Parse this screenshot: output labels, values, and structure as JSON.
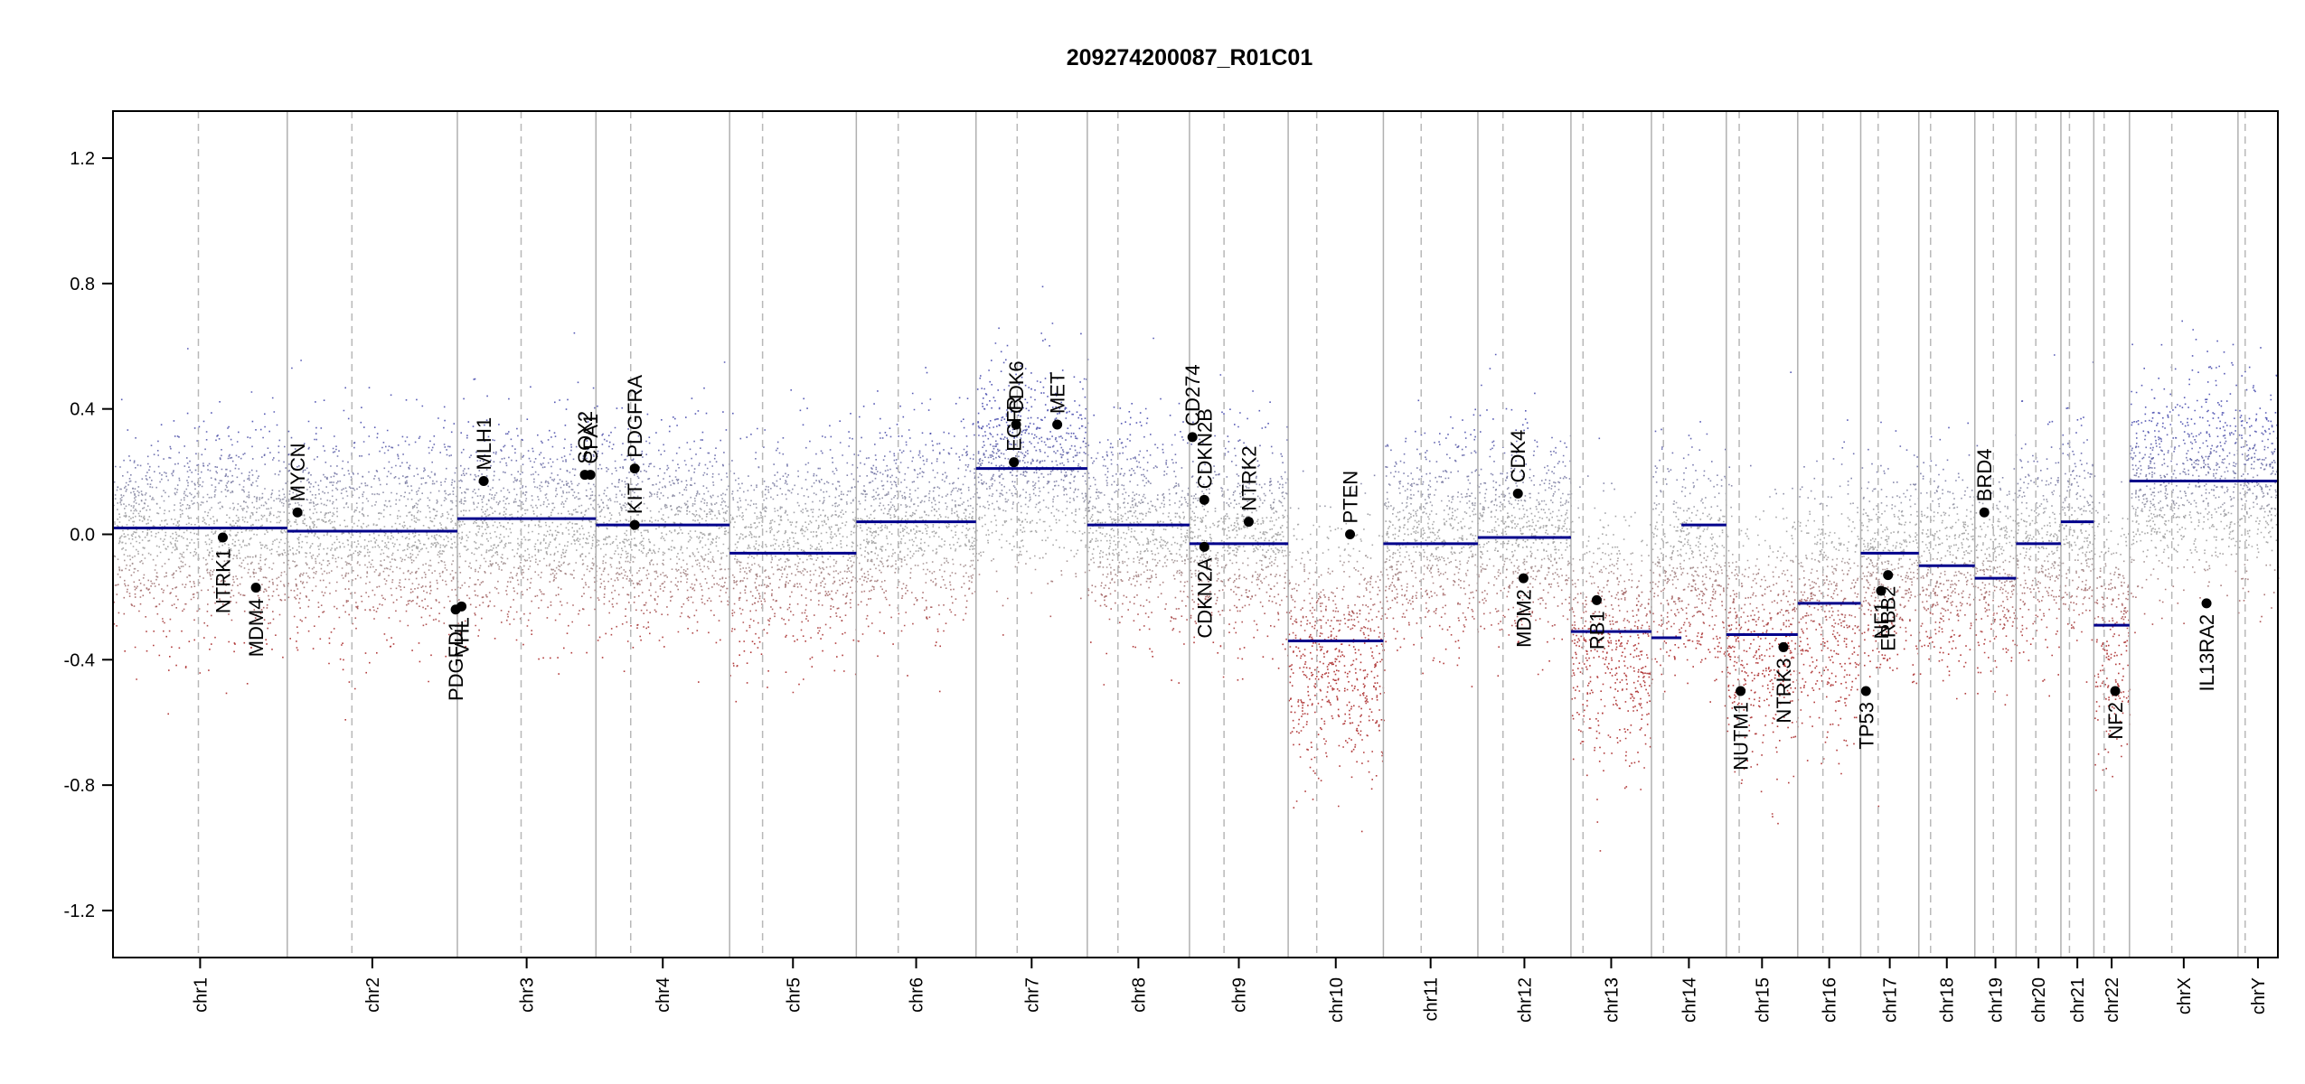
{
  "chart_data": {
    "type": "scatter",
    "title": "209274200087_R01C01",
    "xlabel": "",
    "ylabel": "",
    "ylim": [
      -1.35,
      1.35
    ],
    "y_ticks": [
      1.2,
      0.8,
      0.4,
      0.0,
      -0.4,
      -0.8,
      -1.2
    ],
    "y_tick_labels": [
      "1.2",
      "0.8",
      "0.4",
      "0.0",
      "-0.4",
      "-0.8",
      "-1.2"
    ],
    "grid": false,
    "colors": {
      "gain": "#3b3fa8",
      "loss": "#a51b1b",
      "neutral": "#9a9a9a",
      "segment": "#00008b",
      "boundary": "#b0b0b0",
      "centromere": "#b8b8b8"
    },
    "chromosomes": [
      {
        "name": "chr1",
        "length": 249,
        "centromere": 0.49,
        "segments": [
          {
            "from": 0,
            "to": 1,
            "value": 0.02
          }
        ],
        "noise_mean": 0.0
      },
      {
        "name": "chr2",
        "length": 243,
        "centromere": 0.38,
        "segments": [
          {
            "from": 0,
            "to": 1,
            "value": 0.01
          }
        ],
        "noise_mean": 0.01
      },
      {
        "name": "chr3",
        "length": 198,
        "centromere": 0.46,
        "segments": [
          {
            "from": 0,
            "to": 1,
            "value": 0.05
          }
        ],
        "noise_mean": 0.03
      },
      {
        "name": "chr4",
        "length": 191,
        "centromere": 0.26,
        "segments": [
          {
            "from": 0,
            "to": 1,
            "value": 0.03
          }
        ],
        "noise_mean": 0.02
      },
      {
        "name": "chr5",
        "length": 181,
        "centromere": 0.26,
        "segments": [
          {
            "from": 0,
            "to": 1,
            "value": -0.06
          }
        ],
        "noise_mean": -0.05
      },
      {
        "name": "chr6",
        "length": 171,
        "centromere": 0.35,
        "segments": [
          {
            "from": 0,
            "to": 1,
            "value": 0.04
          }
        ],
        "noise_mean": 0.03
      },
      {
        "name": "chr7",
        "length": 159,
        "centromere": 0.37,
        "segments": [
          {
            "from": 0,
            "to": 1,
            "value": 0.21
          }
        ],
        "noise_mean": 0.22
      },
      {
        "name": "chr8",
        "length": 146,
        "centromere": 0.3,
        "segments": [
          {
            "from": 0,
            "to": 1,
            "value": 0.03
          }
        ],
        "noise_mean": 0.02
      },
      {
        "name": "chr9",
        "length": 141,
        "centromere": 0.35,
        "segments": [
          {
            "from": 0,
            "to": 1,
            "value": -0.03
          }
        ],
        "noise_mean": -0.02
      },
      {
        "name": "chr10",
        "length": 136,
        "centromere": 0.3,
        "segments": [
          {
            "from": 0,
            "to": 1,
            "value": -0.34
          }
        ],
        "noise_mean": -0.36
      },
      {
        "name": "chr11",
        "length": 135,
        "centromere": 0.4,
        "segments": [
          {
            "from": 0,
            "to": 1,
            "value": -0.03
          }
        ],
        "noise_mean": -0.02
      },
      {
        "name": "chr12",
        "length": 133,
        "centromere": 0.27,
        "segments": [
          {
            "from": 0,
            "to": 1,
            "value": -0.01
          }
        ],
        "noise_mean": 0.0
      },
      {
        "name": "chr13",
        "length": 115,
        "centromere": 0.15,
        "segments": [
          {
            "from": 0,
            "to": 1,
            "value": -0.31
          }
        ],
        "noise_mean": -0.33
      },
      {
        "name": "chr14",
        "length": 107,
        "centromere": 0.16,
        "segments": [
          {
            "from": 0,
            "to": 0.4,
            "value": -0.33
          },
          {
            "from": 0.4,
            "to": 1,
            "value": 0.03
          }
        ],
        "noise_mean": -0.1
      },
      {
        "name": "chr15",
        "length": 102,
        "centromere": 0.18,
        "segments": [
          {
            "from": 0,
            "to": 1,
            "value": -0.32
          }
        ],
        "noise_mean": -0.34
      },
      {
        "name": "chr16",
        "length": 90,
        "centromere": 0.4,
        "segments": [
          {
            "from": 0,
            "to": 1,
            "value": -0.22
          }
        ],
        "noise_mean": -0.22
      },
      {
        "name": "chr17",
        "length": 83,
        "centromere": 0.3,
        "segments": [
          {
            "from": 0,
            "to": 1,
            "value": -0.06
          }
        ],
        "noise_mean": -0.1
      },
      {
        "name": "chr18",
        "length": 80,
        "centromere": 0.21,
        "segments": [
          {
            "from": 0,
            "to": 1,
            "value": -0.1
          }
        ],
        "noise_mean": -0.1
      },
      {
        "name": "chr19",
        "length": 59,
        "centromere": 0.45,
        "segments": [
          {
            "from": 0,
            "to": 1,
            "value": -0.14
          }
        ],
        "noise_mean": -0.12
      },
      {
        "name": "chr20",
        "length": 64,
        "centromere": 0.44,
        "segments": [
          {
            "from": 0,
            "to": 1,
            "value": -0.03
          }
        ],
        "noise_mean": -0.04
      },
      {
        "name": "chr21",
        "length": 47,
        "centromere": 0.26,
        "segments": [
          {
            "from": 0,
            "to": 1,
            "value": 0.04
          }
        ],
        "noise_mean": 0.02
      },
      {
        "name": "chr22",
        "length": 51,
        "centromere": 0.29,
        "segments": [
          {
            "from": 0,
            "to": 1,
            "value": -0.29
          }
        ],
        "noise_mean": -0.3
      },
      {
        "name": "chrX",
        "length": 155,
        "centromere": 0.39,
        "segments": [
          {
            "from": 0,
            "to": 1,
            "value": 0.17
          }
        ],
        "noise_mean": 0.17
      },
      {
        "name": "chrY",
        "length": 57,
        "centromere": 0.18,
        "segments": [
          {
            "from": 0,
            "to": 1,
            "value": 0.17
          }
        ],
        "noise_mean": 0.15
      }
    ],
    "genes": [
      {
        "name": "NTRK1",
        "chr": "chr1",
        "pos": 0.63,
        "value": -0.01,
        "label_side": "below"
      },
      {
        "name": "MDM4",
        "chr": "chr1",
        "pos": 0.82,
        "value": -0.17,
        "label_side": "below"
      },
      {
        "name": "MYCN",
        "chr": "chr2",
        "pos": 0.06,
        "value": 0.07,
        "label_side": "above"
      },
      {
        "name": "PDGFD1",
        "chr": "chr2",
        "pos": 0.99,
        "value": -0.24,
        "label_side": "below"
      },
      {
        "name": "VHL",
        "chr": "chr3",
        "pos": 0.03,
        "value": -0.23,
        "label_side": "below"
      },
      {
        "name": "MLH1",
        "chr": "chr3",
        "pos": 0.19,
        "value": 0.17,
        "label_side": "above"
      },
      {
        "name": "SOX2",
        "chr": "chr3",
        "pos": 0.92,
        "value": 0.19,
        "label_side": "above"
      },
      {
        "name": "CPA1",
        "chr": "chr3",
        "pos": 0.96,
        "value": 0.19,
        "label_side": "above"
      },
      {
        "name": "KIT",
        "chr": "chr4",
        "pos": 0.29,
        "value": 0.03,
        "label_side": "above"
      },
      {
        "name": "PDGFRA",
        "chr": "chr4",
        "pos": 0.29,
        "value": 0.21,
        "label_side": "above"
      },
      {
        "name": "EGFR",
        "chr": "chr7",
        "pos": 0.34,
        "value": 0.23,
        "label_side": "above"
      },
      {
        "name": "CDK6",
        "chr": "chr7",
        "pos": 0.36,
        "value": 0.35,
        "label_side": "above"
      },
      {
        "name": "MET",
        "chr": "chr7",
        "pos": 0.73,
        "value": 0.35,
        "label_side": "above"
      },
      {
        "name": "CD274",
        "chr": "chr9",
        "pos": 0.03,
        "value": 0.31,
        "label_side": "above"
      },
      {
        "name": "CDKN2B",
        "chr": "chr9",
        "pos": 0.15,
        "value": 0.11,
        "label_side": "above"
      },
      {
        "name": "CDKN2A",
        "chr": "chr9",
        "pos": 0.15,
        "value": -0.04,
        "label_side": "below"
      },
      {
        "name": "NTRK2",
        "chr": "chr9",
        "pos": 0.6,
        "value": 0.04,
        "label_side": "above"
      },
      {
        "name": "PTEN",
        "chr": "chr10",
        "pos": 0.65,
        "value": 0.0,
        "label_side": "above"
      },
      {
        "name": "CDK4",
        "chr": "chr12",
        "pos": 0.43,
        "value": 0.13,
        "label_side": "above"
      },
      {
        "name": "MDM2",
        "chr": "chr12",
        "pos": 0.49,
        "value": -0.14,
        "label_side": "below"
      },
      {
        "name": "RB1",
        "chr": "chr13",
        "pos": 0.32,
        "value": -0.21,
        "label_side": "below"
      },
      {
        "name": "NUTM1",
        "chr": "chr15",
        "pos": 0.2,
        "value": -0.5,
        "label_side": "below"
      },
      {
        "name": "NTRK3",
        "chr": "chr15",
        "pos": 0.8,
        "value": -0.36,
        "label_side": "below"
      },
      {
        "name": "TP53",
        "chr": "chr17",
        "pos": 0.09,
        "value": -0.5,
        "label_side": "below"
      },
      {
        "name": "NF1",
        "chr": "chr17",
        "pos": 0.35,
        "value": -0.18,
        "label_side": "below"
      },
      {
        "name": "ERBB2",
        "chr": "chr17",
        "pos": 0.47,
        "value": -0.13,
        "label_side": "below"
      },
      {
        "name": "BRD4",
        "chr": "chr19",
        "pos": 0.23,
        "value": 0.07,
        "label_side": "above"
      },
      {
        "name": "NF2",
        "chr": "chr22",
        "pos": 0.6,
        "value": -0.5,
        "label_side": "below"
      },
      {
        "name": "IL13RA2",
        "chr": "chrX",
        "pos": 0.71,
        "value": -0.22,
        "label_side": "below"
      }
    ]
  }
}
